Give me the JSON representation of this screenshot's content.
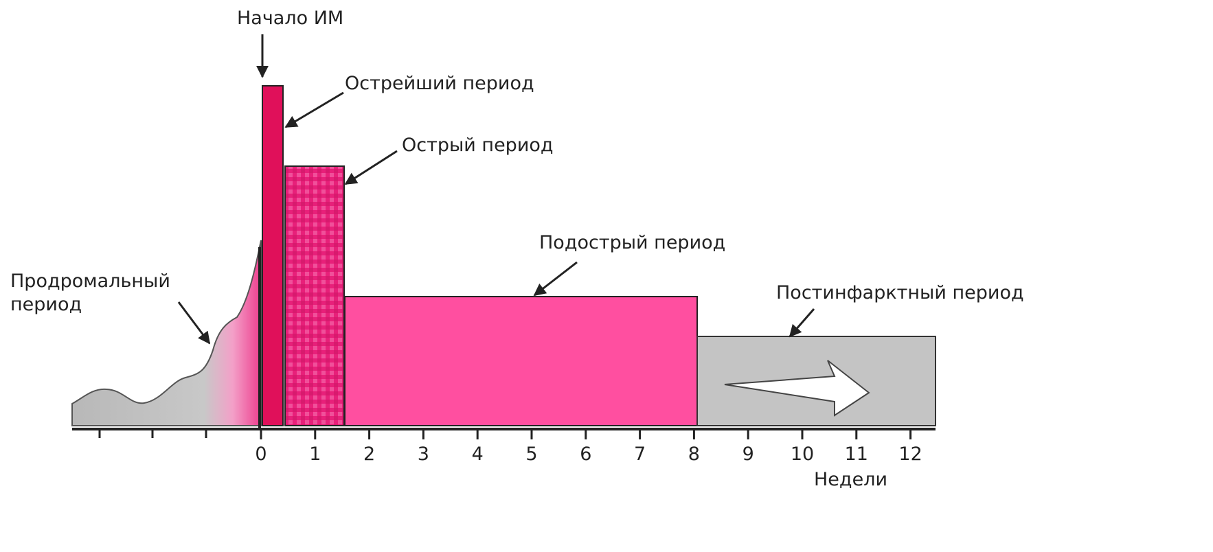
{
  "labels": {
    "onset": "Начало ИМ",
    "most_acute": "Острейший период",
    "acute": "Острый период",
    "subacute": "Подострый период",
    "prodromal": [
      "Продромальный",
      "период"
    ],
    "postinfarction": "Постинфарктный период"
  },
  "x_axis": {
    "ticks": [
      0,
      1,
      2,
      3,
      4,
      5,
      6,
      7,
      8,
      9,
      10,
      11,
      12
    ],
    "label": "Недели"
  }
}
